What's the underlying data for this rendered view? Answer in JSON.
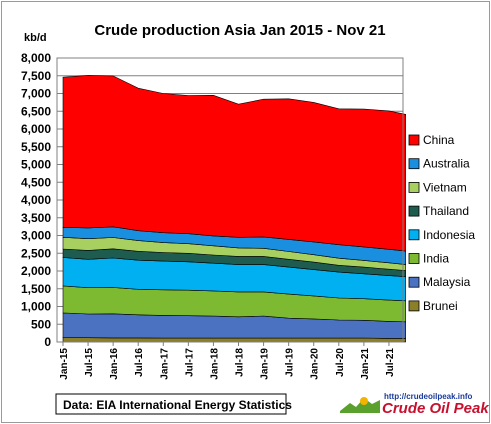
{
  "chart_data": {
    "type": "area",
    "title": "Crude production Asia Jan 2015 - Nov 21",
    "ylabel": "kb/d",
    "ylim": [
      0,
      8000
    ],
    "yticks": [
      "0",
      "500",
      "1,000",
      "1,500",
      "2,000",
      "2,500",
      "3,000",
      "3,500",
      "4,000",
      "4,500",
      "5,000",
      "5,500",
      "6,000",
      "6,500",
      "7,000",
      "7,500",
      "8,000"
    ],
    "xticks": [
      "Jan-15",
      "Jul-15",
      "Jan-16",
      "Jul-16",
      "Jan-17",
      "Jul-17",
      "Jan-18",
      "Jul-18",
      "Jan-19",
      "Jul-19",
      "Jan-20",
      "Jul-20",
      "Jan-21",
      "Jul-21"
    ],
    "grid": true,
    "legend": "right",
    "stacked": true,
    "x": [
      "Jan-15",
      "Jul-15",
      "Jan-16",
      "Jul-16",
      "Jan-17",
      "Jul-17",
      "Jan-18",
      "Jul-18",
      "Jan-19",
      "Jul-19",
      "Jan-20",
      "Jul-20",
      "Jan-21",
      "Jul-21",
      "Nov-21"
    ],
    "series": [
      {
        "name": "Brunei",
        "color": "#8B7F2A",
        "values": [
          120,
          120,
          115,
          115,
          110,
          110,
          110,
          110,
          110,
          110,
          110,
          110,
          110,
          100,
          100
        ]
      },
      {
        "name": "Malaysia",
        "color": "#4A72C0",
        "values": [
          700,
          670,
          680,
          650,
          640,
          630,
          620,
          600,
          620,
          560,
          540,
          510,
          500,
          480,
          470
        ]
      },
      {
        "name": "India",
        "color": "#7DBA32",
        "values": [
          760,
          740,
          740,
          720,
          720,
          720,
          710,
          700,
          680,
          680,
          650,
          620,
          610,
          600,
          590
        ]
      },
      {
        "name": "Indonesia",
        "color": "#00B0F0",
        "values": [
          800,
          800,
          830,
          820,
          810,
          800,
          780,
          770,
          770,
          760,
          740,
          730,
          700,
          690,
          680
        ]
      },
      {
        "name": "Thailand",
        "color": "#1E5C50",
        "values": [
          240,
          250,
          260,
          250,
          240,
          240,
          230,
          230,
          230,
          220,
          210,
          190,
          190,
          180,
          170
        ]
      },
      {
        "name": "Vietnam",
        "color": "#A8D060",
        "values": [
          330,
          330,
          320,
          300,
          280,
          270,
          260,
          240,
          230,
          220,
          210,
          200,
          190,
          180,
          170
        ]
      },
      {
        "name": "Australia",
        "color": "#1A8FE0",
        "values": [
          280,
          300,
          300,
          280,
          280,
          280,
          280,
          300,
          320,
          340,
          360,
          380,
          380,
          380,
          380
        ]
      },
      {
        "name": "China",
        "color": "#FF0000",
        "values": [
          4230,
          4300,
          4250,
          4015,
          3920,
          3890,
          3960,
          3750,
          3880,
          3960,
          3930,
          3830,
          3880,
          3900,
          3850
        ]
      }
    ],
    "source": "Data: EIA International Energy Statistics",
    "logo": {
      "url": "http://crudeoilpeak.info",
      "name": "Crude Oil Peak"
    }
  }
}
